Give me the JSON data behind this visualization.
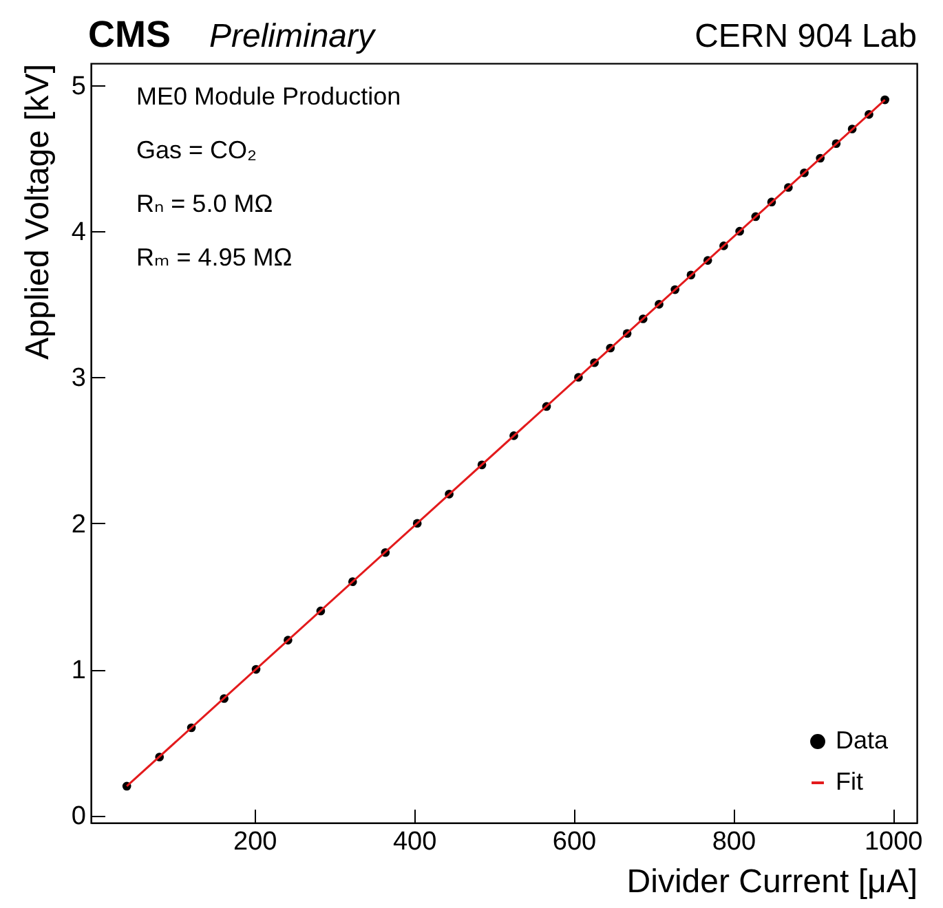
{
  "chart_data": {
    "type": "scatter",
    "title": "CMS",
    "subtitle": "Preliminary",
    "xlabel": "Divider Current [μA]",
    "ylabel": "Applied Voltage [kV]",
    "annotations": [
      "CERN 904 Lab",
      "ME0 Module Production",
      "Gas = CO₂",
      "Rₙ = 5.0 MΩ",
      "Rₘ = 4.95 MΩ"
    ],
    "xlim": [
      -5,
      1030
    ],
    "xticks": [
      200,
      400,
      600,
      800,
      1000
    ],
    "ylim": [
      -0.05,
      5.15
    ],
    "yticks": [
      0,
      1,
      2,
      3,
      4,
      5
    ],
    "grid": false,
    "legend": "bottom right",
    "series": [
      {
        "name": "Data",
        "type": "scatter",
        "marker": "circle",
        "color": "#000000",
        "x": [
          40,
          81,
          121,
          162,
          202,
          242,
          283,
          323,
          364,
          404,
          444,
          485,
          525,
          566,
          606,
          626,
          646,
          667,
          687,
          707,
          727,
          747,
          768,
          788,
          808,
          828,
          848,
          869,
          889,
          909,
          929,
          949,
          970,
          990
        ],
        "values": [
          0.2,
          0.4,
          0.6,
          0.8,
          1.0,
          1.2,
          1.4,
          1.6,
          1.8,
          2.0,
          2.2,
          2.4,
          2.6,
          2.8,
          3.0,
          3.1,
          3.2,
          3.3,
          3.4,
          3.5,
          3.6,
          3.7,
          3.8,
          3.9,
          4.0,
          4.1,
          4.2,
          4.3,
          4.4,
          4.5,
          4.6,
          4.7,
          4.8,
          4.9
        ]
      },
      {
        "name": "Fit",
        "type": "line",
        "color": "#e31a1c",
        "line_style": "solid",
        "x": [
          40,
          990
        ],
        "values": [
          0.2,
          4.9
        ]
      }
    ]
  }
}
